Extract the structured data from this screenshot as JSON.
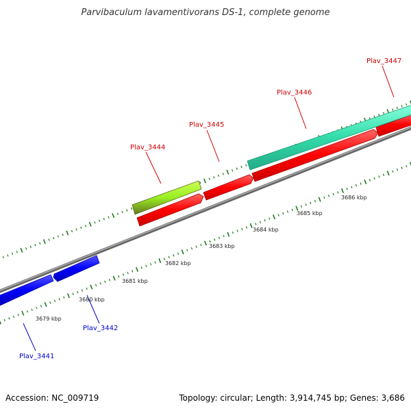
{
  "title": "Parvibaculum lavamentivorans DS-1, complete genome",
  "footer": {
    "accession": "Accession: NC_009719",
    "summary": "Topology: circular; Length: 3,914,745 bp; Genes: 3,686"
  },
  "colors": {
    "backbone": "#8c8c8c",
    "tick": "#1a7a1a",
    "forward_label": "#cc0000",
    "reverse_label": "#0000cc",
    "gene_red": "#ff0000",
    "gene_blue": "#0000ff",
    "gene_teal": "#33ddaa",
    "gene_lime": "#99ee22"
  },
  "genes": [
    {
      "label": "Plav_3441",
      "strand": "reverse",
      "color": "#0000ff"
    },
    {
      "label": "Plav_3442",
      "strand": "reverse",
      "color": "#0000ff"
    },
    {
      "label": "Plav_3444",
      "strand": "forward",
      "color": "#99ee22"
    },
    {
      "label": "Plav_3445",
      "strand": "forward",
      "color": "#ff0000"
    },
    {
      "label": "Plav_3446",
      "strand": "forward",
      "color": "#33ddaa"
    },
    {
      "label": "Plav_3447",
      "strand": "forward",
      "color": "#ff0000"
    }
  ],
  "ruler_labels": [
    "3679 kbp",
    "3680 kbp",
    "3681 kbp",
    "3682 kbp",
    "3683 kbp",
    "3684 kbp",
    "3685 kbp",
    "3686 kbp"
  ]
}
